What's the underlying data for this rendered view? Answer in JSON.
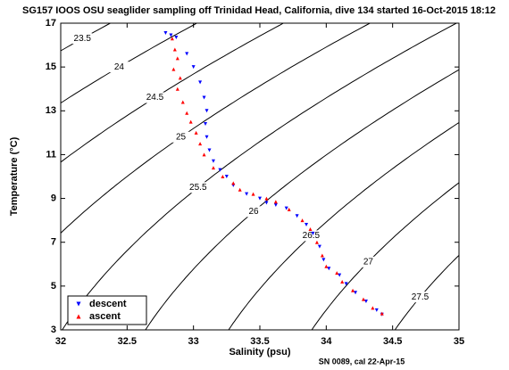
{
  "chart_data": {
    "type": "scatter",
    "title": "SG157 IOOS OSU seaglider sampling off Trinidad Head, California, dive 134 started 16-Oct-2015 18:12",
    "xlabel": "Salinity (psu)",
    "ylabel": "Temperature (°C)",
    "footnote": "SN 0089, cal 22-Apr-15",
    "xlim": [
      32,
      35
    ],
    "ylim": [
      3,
      17
    ],
    "xticks": [
      32,
      32.5,
      33,
      33.5,
      34,
      34.5,
      35
    ],
    "yticks": [
      3,
      5,
      7,
      9,
      11,
      13,
      15,
      17
    ],
    "legend": "lower left",
    "contours": {
      "color": "#000000",
      "levels": [
        23.5,
        24,
        24.5,
        25,
        25.5,
        26,
        26.5,
        27,
        27.5
      ]
    },
    "series": [
      {
        "name": "descent",
        "color": "#0000ff",
        "marker": "down-triangle",
        "x": [
          32.79,
          32.83,
          32.87,
          32.95,
          33.0,
          33.05,
          33.08,
          33.1,
          33.09,
          33.1,
          33.12,
          33.15,
          33.2,
          33.25,
          33.3,
          33.4,
          33.5,
          33.55,
          33.62,
          33.7,
          33.78,
          33.85,
          33.9,
          33.95,
          33.98,
          34.02,
          34.1,
          34.15,
          34.22,
          34.3,
          34.38,
          34.42
        ],
        "values": [
          16.55,
          16.45,
          16.35,
          15.6,
          15.0,
          14.3,
          13.6,
          13.0,
          12.4,
          11.8,
          11.2,
          10.7,
          10.3,
          10.0,
          9.6,
          9.2,
          9.0,
          8.8,
          8.7,
          8.55,
          8.2,
          7.8,
          7.4,
          6.8,
          6.2,
          5.8,
          5.5,
          5.1,
          4.7,
          4.3,
          3.9,
          3.7
        ]
      },
      {
        "name": "ascent",
        "color": "#ff0000",
        "marker": "up-triangle",
        "x": [
          32.84,
          32.86,
          32.88,
          32.85,
          32.9,
          32.88,
          32.92,
          32.95,
          32.98,
          33.02,
          33.05,
          33.08,
          33.15,
          33.22,
          33.3,
          33.35,
          33.45,
          33.55,
          33.62,
          33.72,
          33.82,
          33.88,
          33.93,
          33.97,
          34.0,
          34.08,
          34.12,
          34.2,
          34.28,
          34.35,
          34.42
        ],
        "values": [
          16.3,
          15.8,
          15.4,
          14.9,
          14.5,
          14.0,
          13.4,
          12.9,
          12.5,
          12.0,
          11.5,
          11.0,
          10.4,
          10.0,
          9.7,
          9.4,
          9.2,
          9.0,
          8.85,
          8.5,
          8.0,
          7.6,
          7.0,
          6.4,
          5.9,
          5.6,
          5.2,
          4.8,
          4.4,
          4.0,
          3.75
        ]
      }
    ]
  }
}
